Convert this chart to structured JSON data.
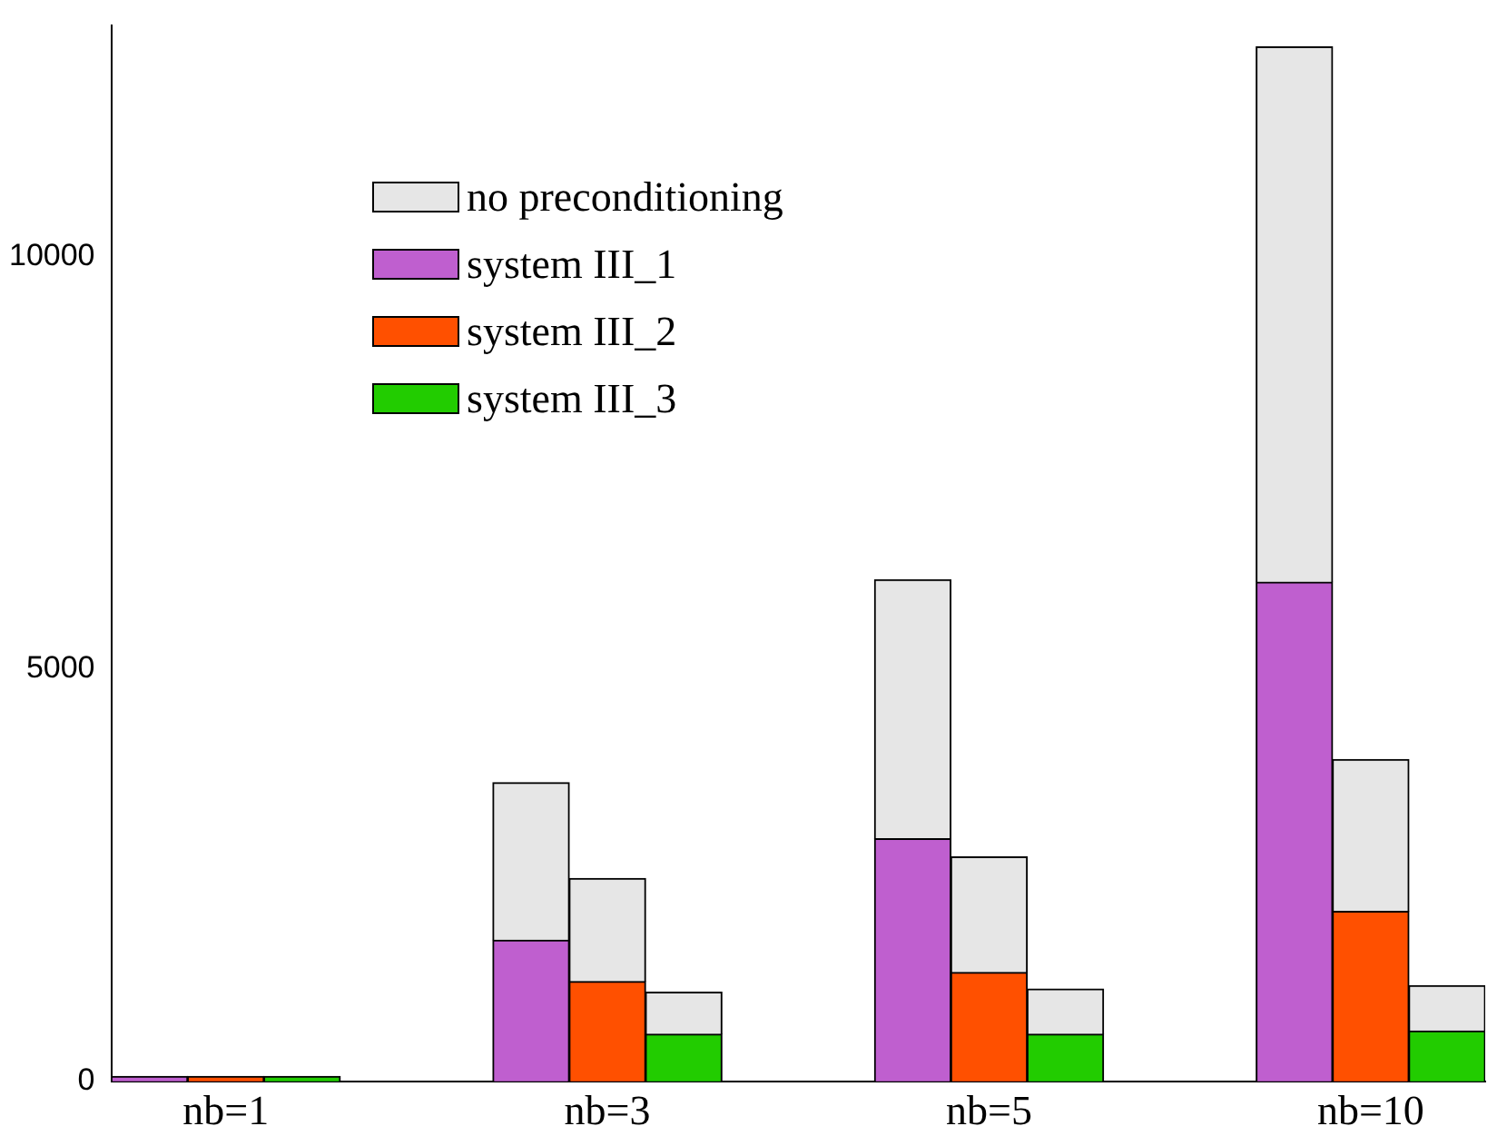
{
  "chart_data": {
    "type": "bar",
    "stacked": true,
    "categories": [
      null,
      "nb=1",
      null,
      null,
      null,
      null,
      "nb=3",
      null,
      null,
      null,
      null,
      "nb=5",
      null,
      null,
      null,
      null,
      "nb=10",
      null
    ],
    "series": [
      {
        "name": "system III_1",
        "color": "#bf5fcf",
        "values": [
          60,
          null,
          null,
          null,
          null,
          1710,
          null,
          null,
          null,
          null,
          2940,
          null,
          null,
          null,
          null,
          6050,
          null,
          null
        ]
      },
      {
        "name": "system III_2",
        "color": "#ff5000",
        "values": [
          null,
          60,
          null,
          null,
          null,
          null,
          1210,
          null,
          null,
          null,
          null,
          1320,
          null,
          null,
          null,
          null,
          2060,
          null
        ]
      },
      {
        "name": "system III_3",
        "color": "#22cc00",
        "values": [
          null,
          null,
          60,
          null,
          null,
          null,
          null,
          570,
          null,
          null,
          null,
          null,
          570,
          null,
          null,
          null,
          null,
          610
        ]
      },
      {
        "name": "no preconditioning",
        "color": "#e6e6e6",
        "values": [
          null,
          null,
          null,
          null,
          null,
          1910,
          1250,
          510,
          null,
          null,
          3140,
          1400,
          550,
          null,
          null,
          6490,
          1840,
          550
        ]
      }
    ],
    "ylim": [
      0,
      12800
    ],
    "yticks": [
      0,
      5000,
      10000
    ],
    "grid": false,
    "legend": "top left"
  }
}
